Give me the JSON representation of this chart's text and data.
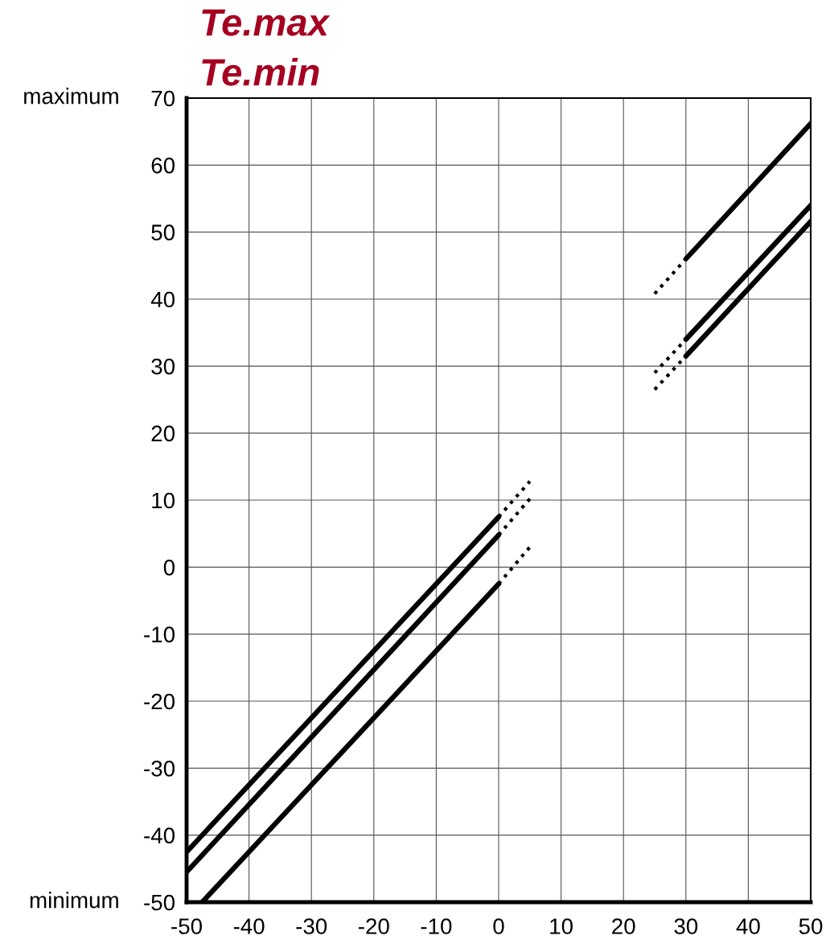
{
  "chart_data": {
    "type": "line",
    "title": "Te.max",
    "subtitle": "Te.min",
    "annotations": [
      "maximum",
      "minimum"
    ],
    "xlim": [
      -50,
      50
    ],
    "xticks": [
      -50,
      -40,
      -30,
      -20,
      -10,
      0,
      10,
      20,
      30,
      40,
      50
    ],
    "ylim": [
      -50,
      70
    ],
    "yticks": [
      -50,
      -40,
      -30,
      -20,
      -10,
      0,
      10,
      20,
      30,
      40,
      50,
      60,
      70
    ],
    "grid": true,
    "marker": "none",
    "series": [
      {
        "color": "#000000",
        "line_style": "solid",
        "x": [
          -50,
          0
        ],
        "values": [
          -42.5,
          7.5
        ]
      },
      {
        "color": "#000000",
        "line_style": "solid",
        "x": [
          -50,
          0
        ],
        "values": [
          -45.5,
          4.8
        ]
      },
      {
        "color": "#000000",
        "line_style": "solid",
        "x": [
          -47.5,
          0
        ],
        "values": [
          -50,
          -2.5
        ]
      },
      {
        "color": "#000000",
        "line_style": "dotted",
        "x": [
          0,
          5
        ],
        "values": [
          7.5,
          12.8
        ]
      },
      {
        "color": "#000000",
        "line_style": "dotted",
        "x": [
          0,
          5
        ],
        "values": [
          4.8,
          10.2
        ]
      },
      {
        "color": "#000000",
        "line_style": "dotted",
        "x": [
          0,
          5
        ],
        "values": [
          -2.5,
          3
        ]
      },
      {
        "color": "#000000",
        "line_style": "solid",
        "x": [
          30,
          50
        ],
        "values": [
          46,
          66.2
        ]
      },
      {
        "color": "#000000",
        "line_style": "solid",
        "x": [
          30,
          50
        ],
        "values": [
          34,
          54
        ]
      },
      {
        "color": "#000000",
        "line_style": "solid",
        "x": [
          30,
          50
        ],
        "values": [
          31.5,
          51.6
        ]
      },
      {
        "color": "#000000",
        "line_style": "dotted",
        "x": [
          25,
          30
        ],
        "values": [
          40.8,
          46
        ]
      },
      {
        "color": "#000000",
        "line_style": "dotted",
        "x": [
          25,
          30
        ],
        "values": [
          29,
          34
        ]
      },
      {
        "color": "#000000",
        "line_style": "dotted",
        "x": [
          25,
          30
        ],
        "values": [
          26.5,
          31.5
        ]
      }
    ]
  }
}
